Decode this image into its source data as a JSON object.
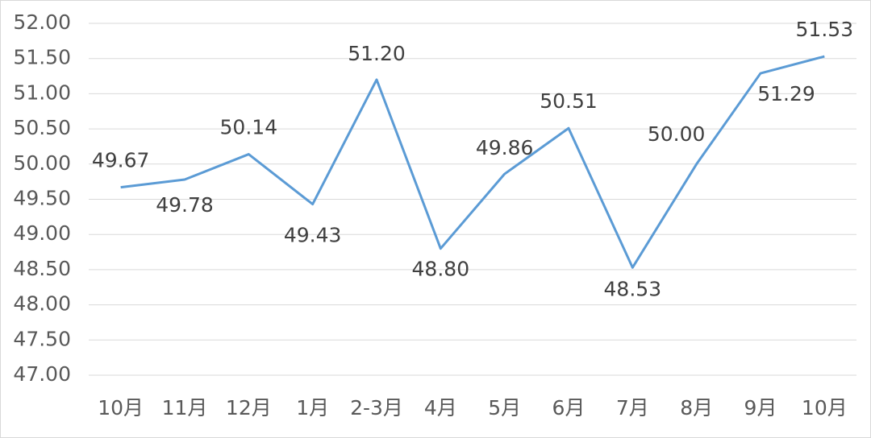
{
  "chart_data": {
    "type": "line",
    "categories": [
      "10月",
      "11月",
      "12月",
      "1月",
      "2-3月",
      "4月",
      "5月",
      "6月",
      "7月",
      "8月",
      "9月",
      "10月"
    ],
    "series": [
      {
        "color": "#5b9bd5",
        "values": [
          49.67,
          49.78,
          50.14,
          49.43,
          51.2,
          48.8,
          49.86,
          50.51,
          48.53,
          50,
          51.29,
          51.53
        ],
        "value_labels": [
          "49.67",
          "49.78",
          "50.14",
          "49.43",
          "51.20",
          "48.80",
          "49.86",
          "50.51",
          "48.53",
          "50.00",
          "51.29",
          "51.53"
        ]
      }
    ],
    "ylim": [
      47,
      52
    ],
    "yticks": [
      {
        "value": 47,
        "label": "47.00"
      },
      {
        "value": 47.5,
        "label": "47.50"
      },
      {
        "value": 48,
        "label": "48.00"
      },
      {
        "value": 48.5,
        "label": "48.50"
      },
      {
        "value": 49,
        "label": "49.00"
      },
      {
        "value": 49.5,
        "label": "49.50"
      },
      {
        "value": 50,
        "label": "50.00"
      },
      {
        "value": 50.5,
        "label": "50.50"
      },
      {
        "value": 51,
        "label": "51.00"
      },
      {
        "value": 51.5,
        "label": "51.50"
      },
      {
        "value": 52,
        "label": "52.00"
      }
    ],
    "grid": true
  }
}
